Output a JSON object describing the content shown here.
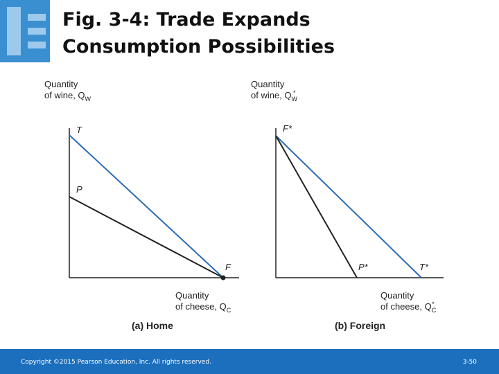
{
  "header": {
    "title_lines": [
      "Fig. 3-4: Trade Expands",
      "Consumption Possibilities"
    ]
  },
  "panels": [
    {
      "y_label": [
        "Quantity",
        "of wine, Q"
      ],
      "y_sub": "W",
      "x_label": [
        "Quantity",
        "of cheese, Q"
      ],
      "x_sub": "C",
      "points": [
        "T",
        "P",
        "F"
      ],
      "caption": "(a) Home"
    },
    {
      "y_label": [
        "Quantity",
        "of wine, Q"
      ],
      "y_sub": "W",
      "y_sup": "*",
      "x_label": [
        "Quantity",
        "of cheese, Q"
      ],
      "x_sub": "C",
      "x_sup": "*",
      "points": [
        "F*",
        "P*",
        "T*"
      ],
      "caption": "(b) Foreign"
    }
  ],
  "footer": {
    "copyright": "Copyright ©2015 Pearson Education, Inc. All rights reserved.",
    "page": "3-50"
  }
}
